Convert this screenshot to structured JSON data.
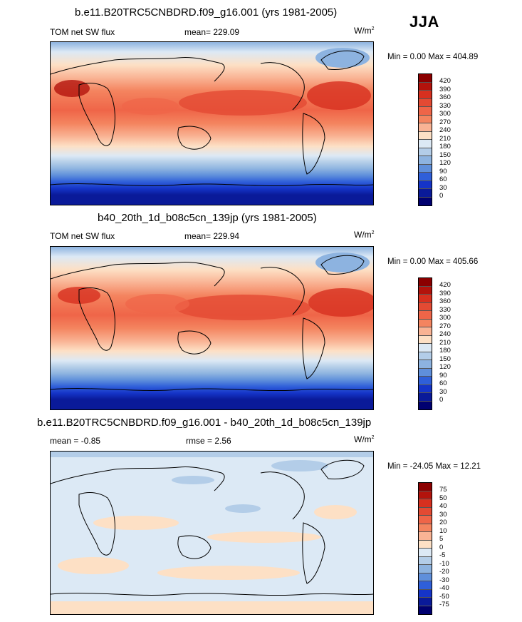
{
  "season": "JJA",
  "panels": [
    {
      "title": "b.e11.B20TRC5CNBDRD.f09_g16.001 (yrs 1981-2005)",
      "left_label": "TOM net SW flux",
      "center_label": "mean= 229.09",
      "units": "W/m",
      "units_sup": "2",
      "minmax": "Min =   0.00 Max = 404.89",
      "cbar_labels": [
        "420",
        "390",
        "360",
        "330",
        "300",
        "270",
        "240",
        "210",
        "180",
        "150",
        "120",
        "90",
        "60",
        "30",
        "0"
      ],
      "cbar_colors": [
        "#8b0000",
        "#b3130c",
        "#d7301f",
        "#e34a33",
        "#ef6548",
        "#f4845f",
        "#f9b394",
        "#fde0c5",
        "#dce9f5",
        "#b3cde8",
        "#8db3e0",
        "#5f8fdb",
        "#2f5fd9",
        "#1534c8",
        "#0a1a99",
        "#000070"
      ]
    },
    {
      "title": "b40_20th_1d_b08c5cn_139jp (yrs 1981-2005)",
      "left_label": "TOM net SW flux",
      "center_label": "mean= 229.94",
      "units": "W/m",
      "units_sup": "2",
      "minmax": "Min =   0.00 Max = 405.66",
      "cbar_labels": [
        "420",
        "390",
        "360",
        "330",
        "300",
        "270",
        "240",
        "210",
        "180",
        "150",
        "120",
        "90",
        "60",
        "30",
        "0"
      ],
      "cbar_colors": [
        "#8b0000",
        "#b3130c",
        "#d7301f",
        "#e34a33",
        "#ef6548",
        "#f4845f",
        "#f9b394",
        "#fde0c5",
        "#dce9f5",
        "#b3cde8",
        "#8db3e0",
        "#5f8fdb",
        "#2f5fd9",
        "#1534c8",
        "#0a1a99",
        "#000070"
      ]
    },
    {
      "title": "b.e11.B20TRC5CNBDRD.f09_g16.001 - b40_20th_1d_b08c5cn_139jp",
      "left_label": "mean =  -0.85",
      "center_label": "rmse =   2.56",
      "units": "W/m",
      "units_sup": "2",
      "minmax": "Min = -24.05 Max =  12.21",
      "cbar_labels": [
        "75",
        "50",
        "40",
        "30",
        "20",
        "10",
        "5",
        "0",
        "-5",
        "-10",
        "-20",
        "-30",
        "-40",
        "-50",
        "-75"
      ],
      "cbar_colors": [
        "#8b0000",
        "#b3130c",
        "#d7301f",
        "#e34a33",
        "#ef6548",
        "#f4845f",
        "#f9b394",
        "#fde0c5",
        "#dce9f5",
        "#b3cde8",
        "#8db3e0",
        "#5f8fdb",
        "#2f5fd9",
        "#1534c8",
        "#0a1a99",
        "#000070"
      ]
    }
  ]
}
